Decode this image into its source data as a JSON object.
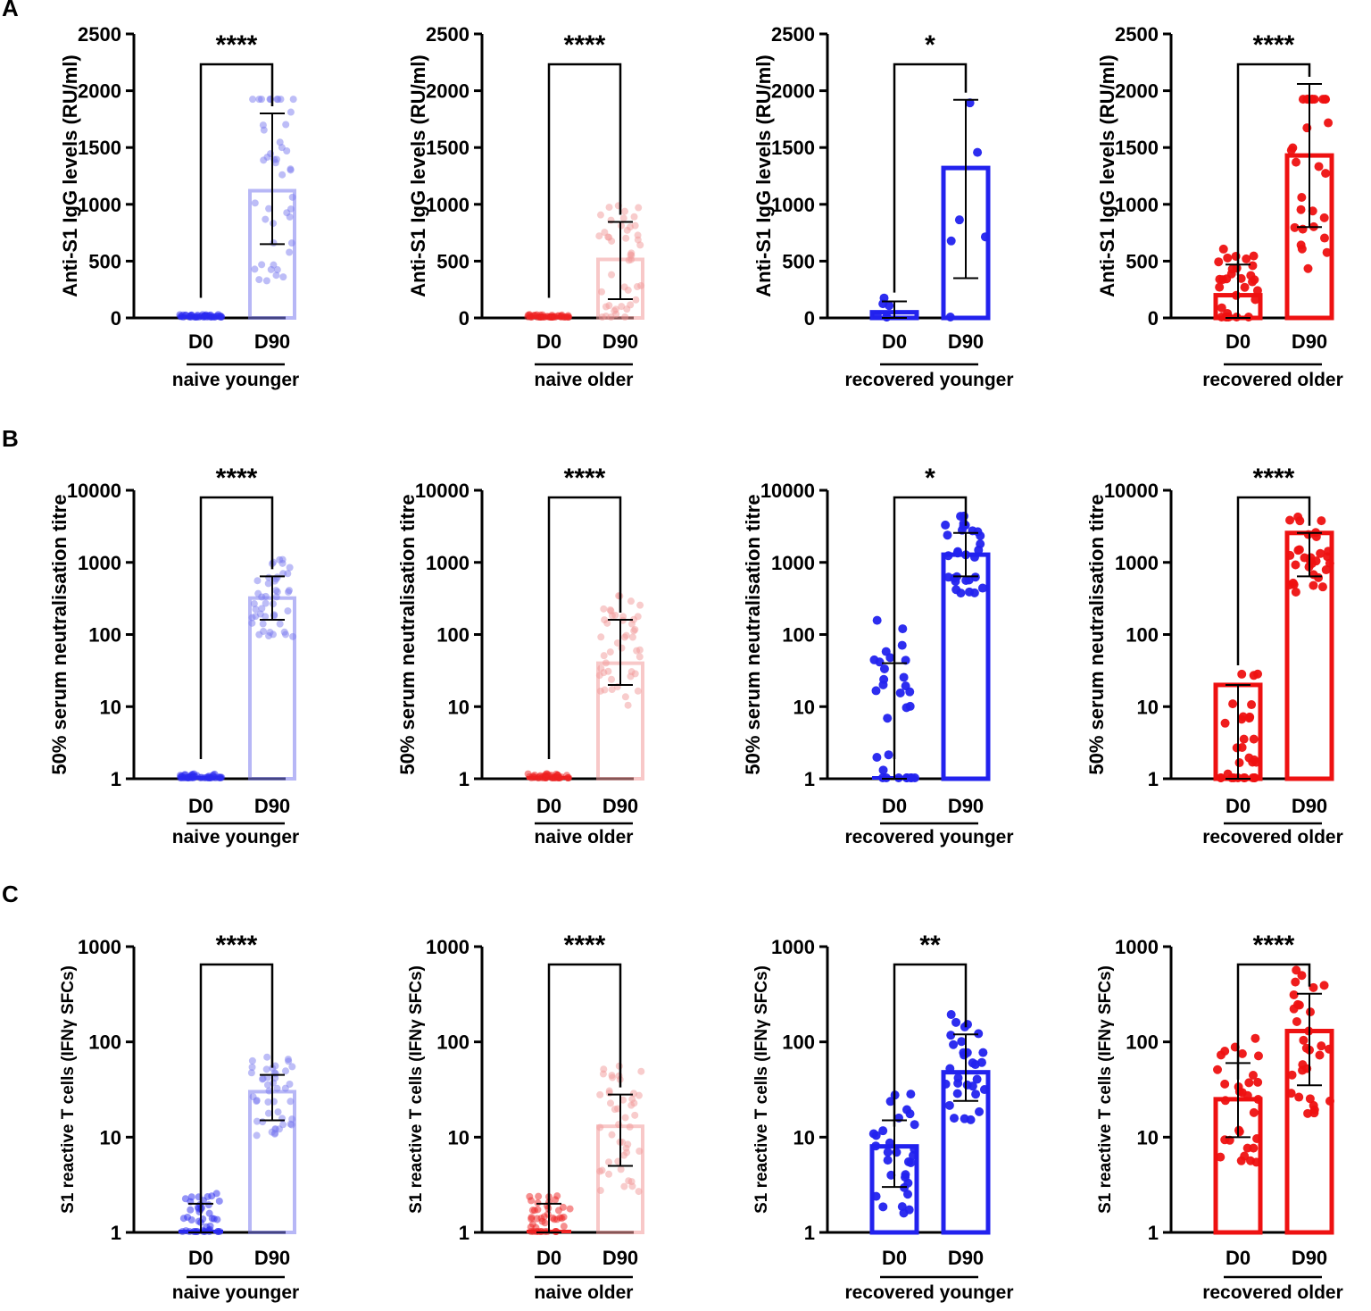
{
  "panel_labels": [
    "A",
    "B",
    "C"
  ],
  "colors": {
    "naive_younger": "#7b7bef",
    "naive_older": "#f29a9a",
    "recovered_younger": "#2222ee",
    "recovered_older": "#ee1111",
    "d0_naive_younger": "#2a2aef",
    "d0_naive_older": "#ee2222"
  },
  "chart_data": [
    {
      "type": "bar",
      "id": "A1",
      "scale": "linear",
      "ylabel": "Anti-S1 IgG levels (RU/ml)",
      "ylim": [
        0,
        2500
      ],
      "yticks": [
        0,
        500,
        1000,
        1500,
        2000,
        2500
      ],
      "yticklabels": [
        "0",
        "500",
        "1000",
        "1500",
        "2000",
        "2500"
      ],
      "categories": [
        "D0",
        "D90"
      ],
      "group": "naive younger",
      "values": [
        4,
        1120
      ],
      "err_low": [
        null,
        650
      ],
      "err_high": [
        null,
        1800
      ],
      "significance": "****"
    },
    {
      "type": "bar",
      "id": "A2",
      "scale": "linear",
      "ylabel": "Anti-S1 IgG levels (RU/ml)",
      "ylim": [
        0,
        2500
      ],
      "yticks": [
        0,
        500,
        1000,
        1500,
        2000,
        2500
      ],
      "yticklabels": [
        "0",
        "500",
        "1000",
        "1500",
        "2000",
        "2500"
      ],
      "categories": [
        "D0",
        "D90"
      ],
      "group": "naive older",
      "values": [
        4,
        515
      ],
      "err_low": [
        null,
        165
      ],
      "err_high": [
        null,
        845
      ],
      "significance": "****"
    },
    {
      "type": "bar",
      "id": "A3",
      "scale": "linear",
      "ylabel": "Anti-S1 IgG levels (RU/ml)",
      "ylim": [
        0,
        2500
      ],
      "yticks": [
        0,
        500,
        1000,
        1500,
        2000,
        2500
      ],
      "yticklabels": [
        "0",
        "500",
        "1000",
        "1500",
        "2000",
        "2500"
      ],
      "categories": [
        "D0",
        "D90"
      ],
      "group": "recovered younger",
      "values": [
        50,
        1320
      ],
      "err_low": [
        0,
        350
      ],
      "err_high": [
        145,
        1920
      ],
      "significance": "*"
    },
    {
      "type": "bar",
      "id": "A4",
      "scale": "linear",
      "ylabel": "Anti-S1 IgG levels (RU/ml)",
      "ylim": [
        0,
        2500
      ],
      "yticks": [
        0,
        500,
        1000,
        1500,
        2000,
        2500
      ],
      "yticklabels": [
        "0",
        "500",
        "1000",
        "1500",
        "2000",
        "2500"
      ],
      "categories": [
        "D0",
        "D90"
      ],
      "group": "recovered older",
      "values": [
        200,
        1430
      ],
      "err_low": [
        0,
        800
      ],
      "err_high": [
        470,
        2060
      ],
      "significance": "****"
    },
    {
      "type": "bar",
      "id": "B1",
      "scale": "log",
      "ylabel": "50% serum neutralisation titre",
      "ylim": [
        1,
        10000
      ],
      "yticks": [
        1,
        10,
        100,
        1000,
        10000
      ],
      "yticklabels": [
        "1",
        "10",
        "100",
        "1000",
        "10000"
      ],
      "categories": [
        "D0",
        "D90"
      ],
      "group": "naive younger",
      "values": [
        1,
        320
      ],
      "err_low": [
        null,
        160
      ],
      "err_high": [
        null,
        640
      ],
      "significance": "****"
    },
    {
      "type": "bar",
      "id": "B2",
      "scale": "log",
      "ylabel": "50% serum neutralisation titre",
      "ylim": [
        1,
        10000
      ],
      "yticks": [
        1,
        10,
        100,
        1000,
        10000
      ],
      "yticklabels": [
        "1",
        "10",
        "100",
        "1000",
        "10000"
      ],
      "categories": [
        "D0",
        "D90"
      ],
      "group": "naive older",
      "values": [
        1,
        40
      ],
      "err_low": [
        null,
        20
      ],
      "err_high": [
        null,
        160
      ],
      "significance": "****"
    },
    {
      "type": "bar",
      "id": "B3",
      "scale": "log",
      "ylabel": "50% serum neutralisation titre",
      "ylim": [
        1,
        10000
      ],
      "yticks": [
        1,
        10,
        100,
        1000,
        10000
      ],
      "yticklabels": [
        "1",
        "10",
        "100",
        "1000",
        "10000"
      ],
      "categories": [
        "D0",
        "D90"
      ],
      "group": "recovered younger",
      "values": [
        1,
        1280
      ],
      "err_low": [
        1,
        640
      ],
      "err_high": [
        40,
        2560
      ],
      "significance": "*"
    },
    {
      "type": "bar",
      "id": "B4",
      "scale": "log",
      "ylabel": "50% serum neutralisation titre",
      "ylim": [
        1,
        10000
      ],
      "yticks": [
        1,
        10,
        100,
        1000,
        10000
      ],
      "yticklabels": [
        "1",
        "10",
        "100",
        "1000",
        "10000"
      ],
      "categories": [
        "D0",
        "D90"
      ],
      "group": "recovered older",
      "values": [
        20,
        2560
      ],
      "err_low": [
        1,
        640
      ],
      "err_high": [
        20,
        2560
      ],
      "significance": "****"
    },
    {
      "type": "bar",
      "id": "C1",
      "scale": "log",
      "ylabel": "S1 reactive T cells (IFNγ SFCs)",
      "ylim": [
        1,
        1000
      ],
      "yticks": [
        1,
        10,
        100,
        1000
      ],
      "yticklabels": [
        "1",
        "10",
        "100",
        "1000"
      ],
      "categories": [
        "D0",
        "D90"
      ],
      "group": "naive younger",
      "values": [
        1,
        30
      ],
      "err_low": [
        1,
        15
      ],
      "err_high": [
        2,
        45
      ],
      "significance": "****"
    },
    {
      "type": "bar",
      "id": "C2",
      "scale": "log",
      "ylabel": "S1 reactive T cells (IFNγ SFCs)",
      "ylim": [
        1,
        1000
      ],
      "yticks": [
        1,
        10,
        100,
        1000
      ],
      "yticklabels": [
        "1",
        "10",
        "100",
        "1000"
      ],
      "categories": [
        "D0",
        "D90"
      ],
      "group": "naive older",
      "values": [
        1,
        13
      ],
      "err_low": [
        1,
        5
      ],
      "err_high": [
        2,
        28
      ],
      "significance": "****"
    },
    {
      "type": "bar",
      "id": "C3",
      "scale": "log",
      "ylabel": "S1 reactive T cells (IFNγ SFCs)",
      "ylim": [
        1,
        1000
      ],
      "yticks": [
        1,
        10,
        100,
        1000
      ],
      "yticklabels": [
        "1",
        "10",
        "100",
        "1000"
      ],
      "categories": [
        "D0",
        "D90"
      ],
      "group": "recovered younger",
      "values": [
        8,
        48
      ],
      "err_low": [
        3,
        24
      ],
      "err_high": [
        15,
        120
      ],
      "significance": "**"
    },
    {
      "type": "bar",
      "id": "C4",
      "scale": "log",
      "ylabel": "S1 reactive T cells (IFNγ SFCs)",
      "ylim": [
        1,
        1000
      ],
      "yticks": [
        1,
        10,
        100,
        1000
      ],
      "yticklabels": [
        "1",
        "10",
        "100",
        "1000"
      ],
      "categories": [
        "D0",
        "D90"
      ],
      "group": "recovered older",
      "values": [
        25,
        130
      ],
      "err_low": [
        10,
        35
      ],
      "err_high": [
        60,
        320
      ],
      "significance": "****"
    }
  ]
}
